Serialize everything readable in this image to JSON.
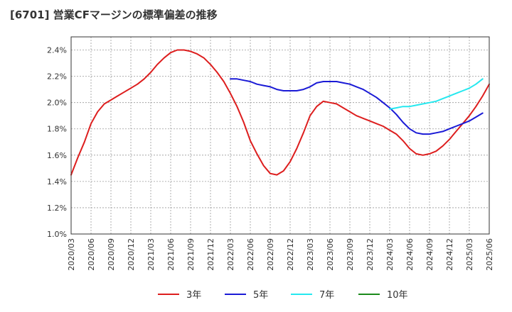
{
  "chart_data": {
    "type": "line",
    "title": "[6701]  営業CFマージンの標準偏差の推移",
    "xlabel": "",
    "ylabel": "",
    "ylim": [
      1.0,
      2.5
    ],
    "y_ticks": [
      1.0,
      1.2,
      1.4,
      1.6,
      1.8,
      2.0,
      2.2,
      2.4
    ],
    "y_tick_labels": [
      "1.0%",
      "1.2%",
      "1.4%",
      "1.6%",
      "1.8%",
      "2.0%",
      "2.2%",
      "2.4%"
    ],
    "x_ticks": [
      "2020/03",
      "2020/06",
      "2020/09",
      "2020/12",
      "2021/03",
      "2021/06",
      "2021/09",
      "2021/12",
      "2022/03",
      "2022/06",
      "2022/09",
      "2022/12",
      "2023/03",
      "2023/06",
      "2023/09",
      "2023/12",
      "2024/03",
      "2024/06",
      "2024/09",
      "2024/12",
      "2025/03",
      "2025/06"
    ],
    "grid": true,
    "legend_position": "bottom",
    "series": [
      {
        "name": "3年",
        "color": "#dd1e1e",
        "points": [
          [
            "2020/03",
            1.45
          ],
          [
            "2020/04",
            1.58
          ],
          [
            "2020/05",
            1.7
          ],
          [
            "2020/06",
            1.84
          ],
          [
            "2020/07",
            1.93
          ],
          [
            "2020/08",
            1.99
          ],
          [
            "2020/09",
            2.02
          ],
          [
            "2020/10",
            2.05
          ],
          [
            "2020/11",
            2.08
          ],
          [
            "2020/12",
            2.11
          ],
          [
            "2021/01",
            2.14
          ],
          [
            "2021/02",
            2.18
          ],
          [
            "2021/03",
            2.23
          ],
          [
            "2021/04",
            2.29
          ],
          [
            "2021/05",
            2.34
          ],
          [
            "2021/06",
            2.38
          ],
          [
            "2021/07",
            2.4
          ],
          [
            "2021/08",
            2.4
          ],
          [
            "2021/09",
            2.39
          ],
          [
            "2021/10",
            2.37
          ],
          [
            "2021/11",
            2.34
          ],
          [
            "2021/12",
            2.29
          ],
          [
            "2022/01",
            2.23
          ],
          [
            "2022/02",
            2.16
          ],
          [
            "2022/03",
            2.07
          ],
          [
            "2022/04",
            1.97
          ],
          [
            "2022/05",
            1.85
          ],
          [
            "2022/06",
            1.71
          ],
          [
            "2022/07",
            1.61
          ],
          [
            "2022/08",
            1.52
          ],
          [
            "2022/09",
            1.46
          ],
          [
            "2022/10",
            1.45
          ],
          [
            "2022/11",
            1.48
          ],
          [
            "2022/12",
            1.55
          ],
          [
            "2023/01",
            1.65
          ],
          [
            "2023/02",
            1.77
          ],
          [
            "2023/03",
            1.9
          ],
          [
            "2023/04",
            1.97
          ],
          [
            "2023/05",
            2.01
          ],
          [
            "2023/06",
            2.0
          ],
          [
            "2023/07",
            1.99
          ],
          [
            "2023/08",
            1.96
          ],
          [
            "2023/09",
            1.93
          ],
          [
            "2023/10",
            1.9
          ],
          [
            "2023/11",
            1.88
          ],
          [
            "2023/12",
            1.86
          ],
          [
            "2024/01",
            1.84
          ],
          [
            "2024/02",
            1.82
          ],
          [
            "2024/03",
            1.79
          ],
          [
            "2024/04",
            1.76
          ],
          [
            "2024/05",
            1.71
          ],
          [
            "2024/06",
            1.65
          ],
          [
            "2024/07",
            1.61
          ],
          [
            "2024/08",
            1.6
          ],
          [
            "2024/09",
            1.61
          ],
          [
            "2024/10",
            1.63
          ],
          [
            "2024/11",
            1.67
          ],
          [
            "2024/12",
            1.72
          ],
          [
            "2025/01",
            1.78
          ],
          [
            "2025/02",
            1.84
          ],
          [
            "2025/03",
            1.9
          ],
          [
            "2025/04",
            1.97
          ],
          [
            "2025/05",
            2.05
          ],
          [
            "2025/06",
            2.14
          ]
        ]
      },
      {
        "name": "5年",
        "color": "#1a1ad6",
        "points": [
          [
            "2022/03",
            2.18
          ],
          [
            "2022/04",
            2.18
          ],
          [
            "2022/05",
            2.17
          ],
          [
            "2022/06",
            2.16
          ],
          [
            "2022/07",
            2.14
          ],
          [
            "2022/08",
            2.13
          ],
          [
            "2022/09",
            2.12
          ],
          [
            "2022/10",
            2.1
          ],
          [
            "2022/11",
            2.09
          ],
          [
            "2022/12",
            2.09
          ],
          [
            "2023/01",
            2.09
          ],
          [
            "2023/02",
            2.1
          ],
          [
            "2023/03",
            2.12
          ],
          [
            "2023/04",
            2.15
          ],
          [
            "2023/05",
            2.16
          ],
          [
            "2023/06",
            2.16
          ],
          [
            "2023/07",
            2.16
          ],
          [
            "2023/08",
            2.15
          ],
          [
            "2023/09",
            2.14
          ],
          [
            "2023/10",
            2.12
          ],
          [
            "2023/11",
            2.1
          ],
          [
            "2023/12",
            2.07
          ],
          [
            "2024/01",
            2.04
          ],
          [
            "2024/02",
            2.0
          ],
          [
            "2024/03",
            1.96
          ],
          [
            "2024/04",
            1.91
          ],
          [
            "2024/05",
            1.85
          ],
          [
            "2024/06",
            1.8
          ],
          [
            "2024/07",
            1.77
          ],
          [
            "2024/08",
            1.76
          ],
          [
            "2024/09",
            1.76
          ],
          [
            "2024/10",
            1.77
          ],
          [
            "2024/11",
            1.78
          ],
          [
            "2024/12",
            1.8
          ],
          [
            "2025/01",
            1.82
          ],
          [
            "2025/02",
            1.84
          ],
          [
            "2025/03",
            1.86
          ],
          [
            "2025/04",
            1.89
          ],
          [
            "2025/05",
            1.92
          ]
        ]
      },
      {
        "name": "7年",
        "color": "#25e8ef",
        "points": [
          [
            "2024/03",
            1.95
          ],
          [
            "2024/04",
            1.96
          ],
          [
            "2024/05",
            1.97
          ],
          [
            "2024/06",
            1.97
          ],
          [
            "2024/07",
            1.98
          ],
          [
            "2024/08",
            1.99
          ],
          [
            "2024/09",
            2.0
          ],
          [
            "2024/10",
            2.01
          ],
          [
            "2024/11",
            2.03
          ],
          [
            "2024/12",
            2.05
          ],
          [
            "2025/01",
            2.07
          ],
          [
            "2025/02",
            2.09
          ],
          [
            "2025/03",
            2.11
          ],
          [
            "2025/04",
            2.14
          ],
          [
            "2025/05",
            2.18
          ]
        ]
      },
      {
        "name": "10年",
        "color": "#1b8a1b",
        "points": []
      }
    ]
  }
}
